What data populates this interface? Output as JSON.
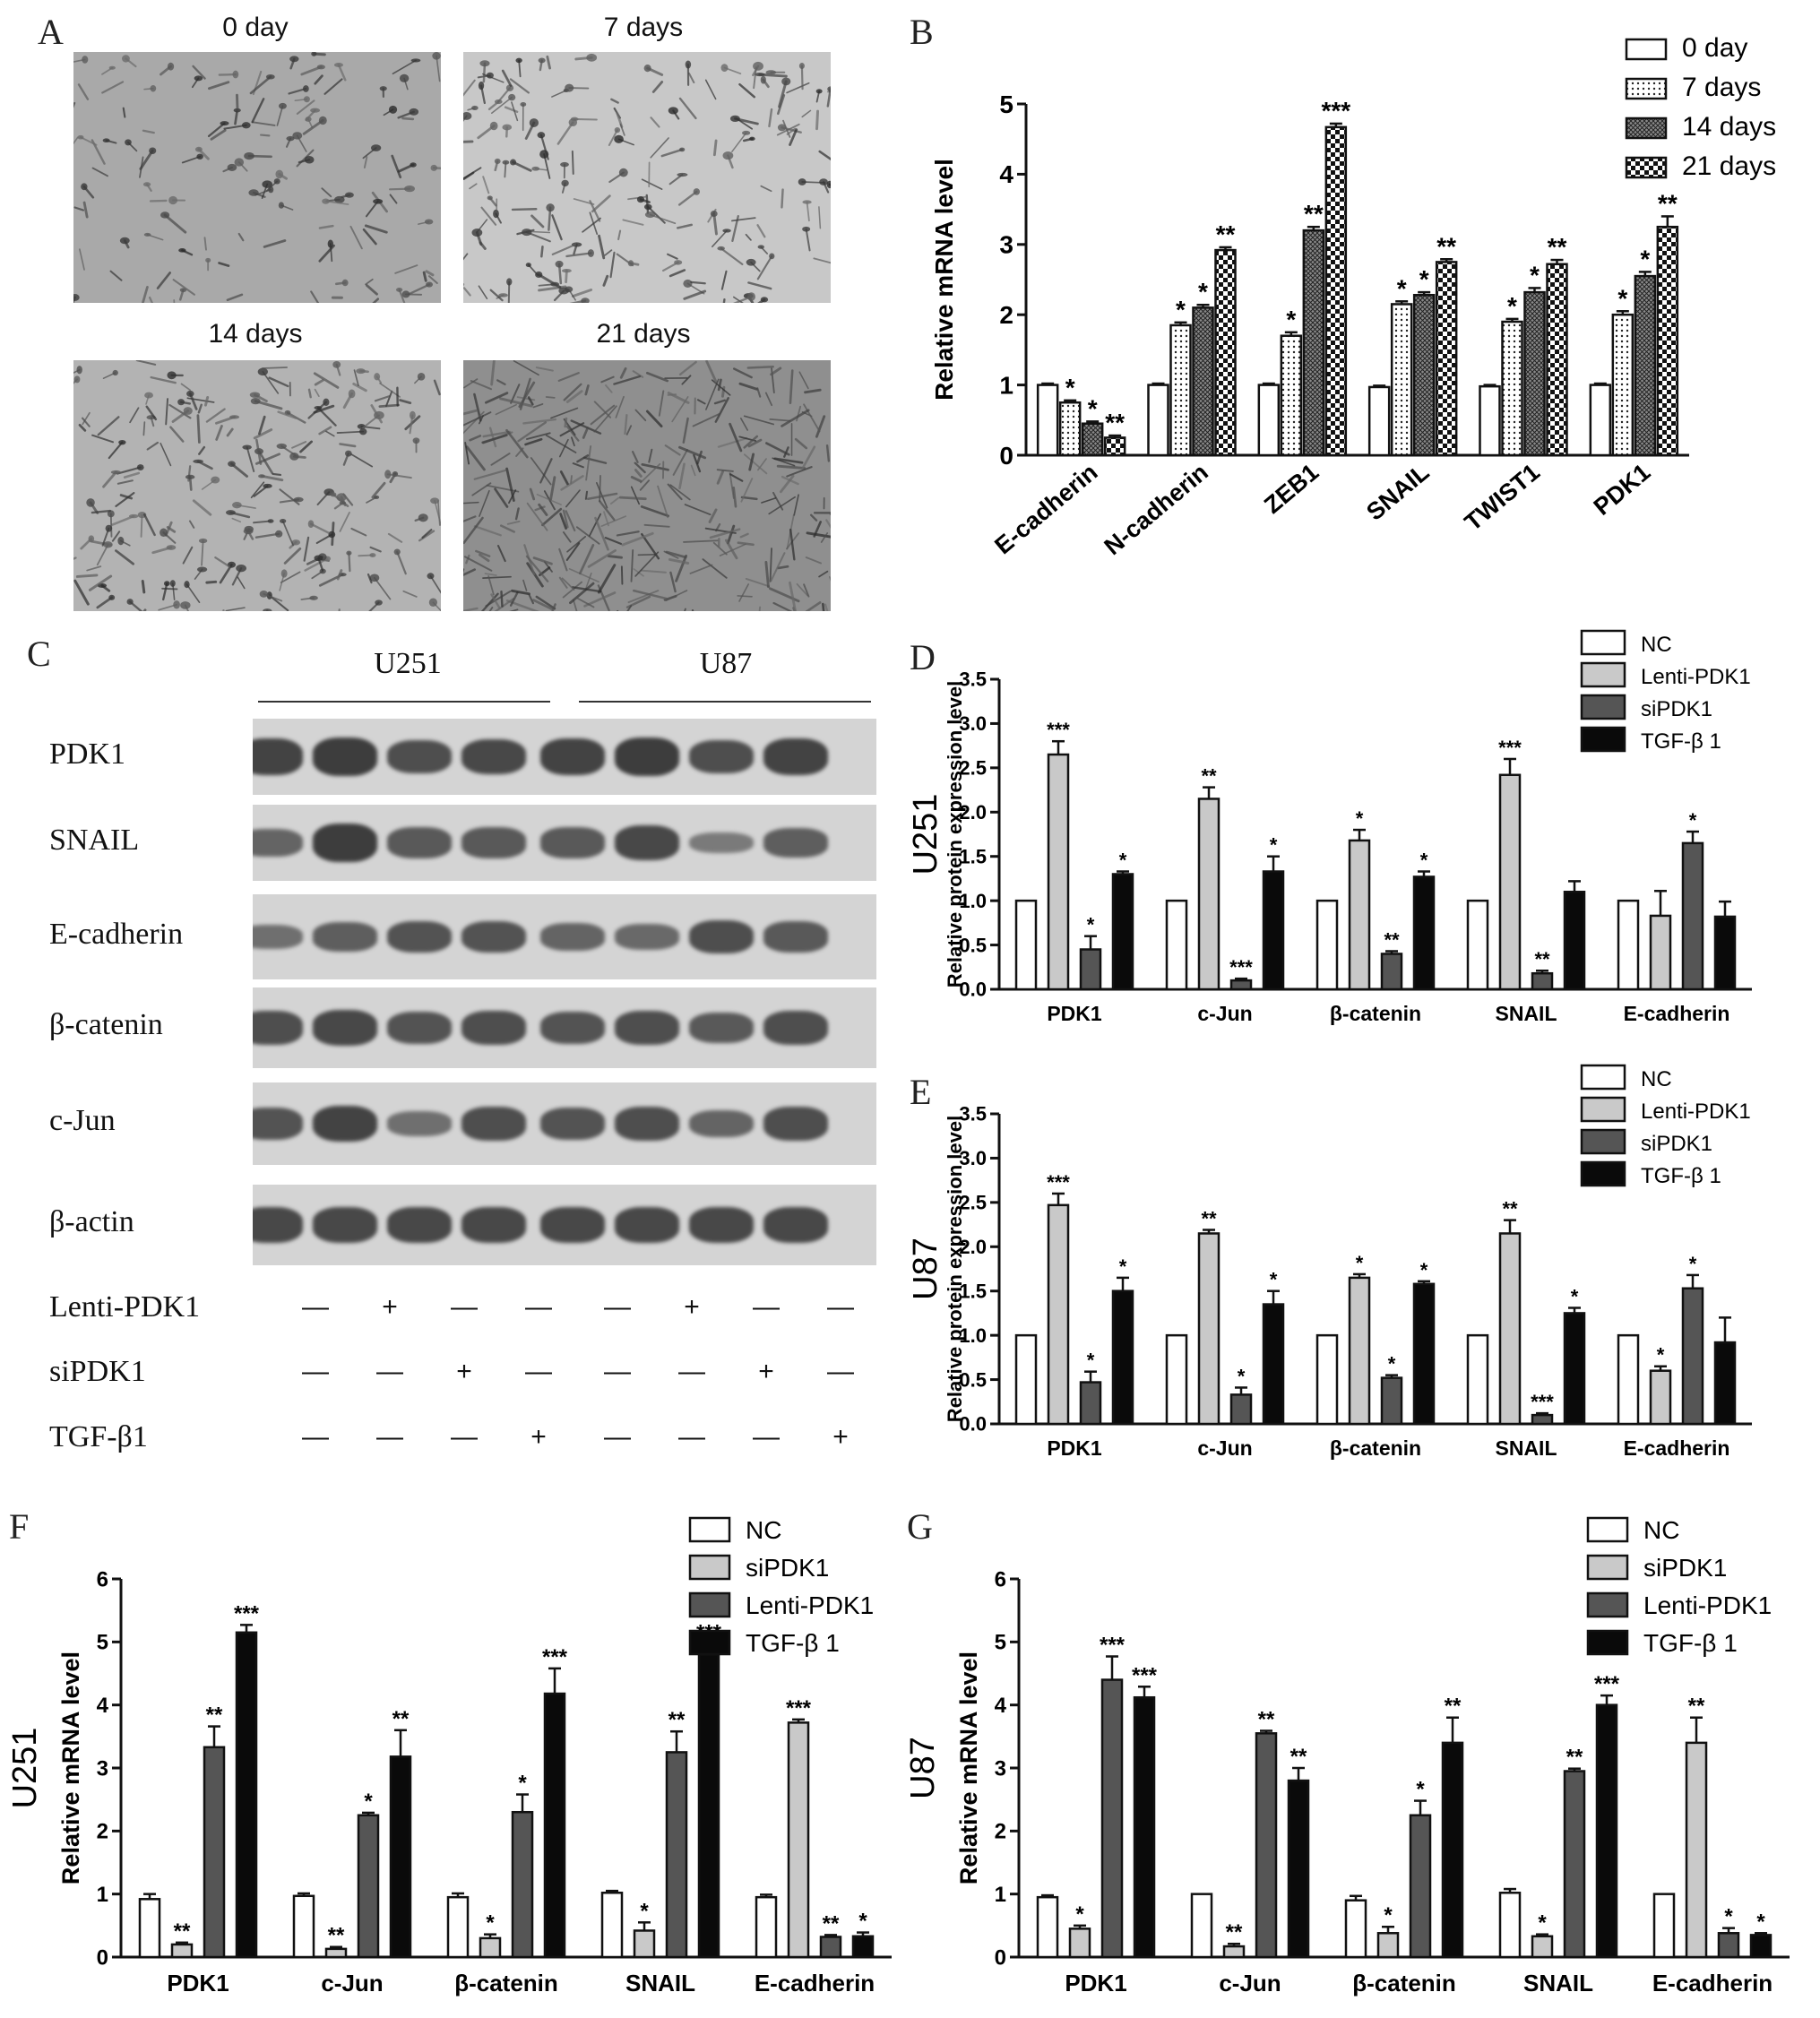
{
  "panel_labels": {
    "A": "A",
    "B": "B",
    "C": "C",
    "D": "D",
    "E": "E",
    "F": "F",
    "G": "G"
  },
  "panel_a": {
    "micrographs": [
      {
        "title": "0 day",
        "density": 0.25
      },
      {
        "title": "7 days",
        "density": 0.45
      },
      {
        "title": "14 days",
        "density": 0.55
      },
      {
        "title": "21 days",
        "density": 1.0
      }
    ]
  },
  "panel_c": {
    "cell_lines": [
      "U251",
      "U87"
    ],
    "rows": [
      {
        "label": "PDK1",
        "intensity": [
          0.85,
          0.9,
          0.75,
          0.8,
          0.85,
          0.9,
          0.75,
          0.85
        ]
      },
      {
        "label": "SNAIL",
        "intensity": [
          0.55,
          0.9,
          0.65,
          0.65,
          0.65,
          0.8,
          0.35,
          0.6
        ]
      },
      {
        "label": "E-cadherin",
        "intensity": [
          0.45,
          0.6,
          0.7,
          0.7,
          0.55,
          0.5,
          0.75,
          0.65
        ]
      },
      {
        "label": "β-catenin",
        "intensity": [
          0.75,
          0.8,
          0.7,
          0.75,
          0.7,
          0.75,
          0.65,
          0.75
        ]
      },
      {
        "label": "c-Jun",
        "intensity": [
          0.7,
          0.85,
          0.45,
          0.75,
          0.7,
          0.75,
          0.55,
          0.75
        ]
      },
      {
        "label": "β-actin",
        "intensity": [
          0.8,
          0.8,
          0.8,
          0.8,
          0.8,
          0.8,
          0.8,
          0.8
        ]
      }
    ],
    "conditions": [
      {
        "label": "Lenti-PDK1",
        "marks": [
          "—",
          "+",
          "—",
          "—",
          "—",
          "+",
          "—",
          "—"
        ]
      },
      {
        "label": "siPDK1",
        "marks": [
          "—",
          "—",
          "+",
          "—",
          "—",
          "—",
          "+",
          "—"
        ]
      },
      {
        "label": "TGF-β1",
        "marks": [
          "—",
          "—",
          "—",
          "+",
          "—",
          "—",
          "—",
          "+"
        ]
      }
    ]
  },
  "chart_data": [
    {
      "id": "B",
      "type": "bar",
      "ylabel": "Relative mRNA level",
      "side_label": "",
      "ylim": [
        0,
        5
      ],
      "yticks": [
        "0",
        "1",
        "2",
        "3",
        "4",
        "5"
      ],
      "categories": [
        "E-cadherin",
        "N-cadherin",
        "ZEB1",
        "SNAIL",
        "TWIST1",
        "PDK1"
      ],
      "legend_position": "top-right",
      "series": [
        {
          "name": "0 day",
          "pattern": "white",
          "values": [
            1.0,
            1.0,
            1.0,
            0.97,
            0.98,
            1.0
          ],
          "errors": [
            0.02,
            0.02,
            0.02,
            0.02,
            0.02,
            0.02
          ],
          "stars": [
            "",
            "",
            "",
            "",
            "",
            ""
          ]
        },
        {
          "name": "7 days",
          "pattern": "dots",
          "values": [
            0.75,
            1.85,
            1.7,
            2.15,
            1.9,
            2.0
          ],
          "errors": [
            0.03,
            0.04,
            0.05,
            0.04,
            0.04,
            0.05
          ],
          "stars": [
            "*",
            "*",
            "*",
            "*",
            "*",
            "*"
          ]
        },
        {
          "name": "14 days",
          "pattern": "grid",
          "values": [
            0.45,
            2.1,
            3.2,
            2.28,
            2.32,
            2.55
          ],
          "errors": [
            0.03,
            0.04,
            0.05,
            0.04,
            0.06,
            0.06
          ],
          "stars": [
            "*",
            "*",
            "**",
            "*",
            "*",
            "*"
          ]
        },
        {
          "name": "21 days",
          "pattern": "check",
          "values": [
            0.25,
            2.92,
            4.67,
            2.75,
            2.72,
            3.25
          ],
          "errors": [
            0.03,
            0.04,
            0.05,
            0.04,
            0.06,
            0.15
          ],
          "stars": [
            "**",
            "**",
            "***",
            "**",
            "**",
            "**"
          ]
        }
      ]
    },
    {
      "id": "D",
      "type": "bar",
      "ylabel": "Relative protein expression level",
      "side_label": "U251",
      "ylim": [
        0,
        3.5
      ],
      "yticks": [
        "0.0",
        "0.5",
        "1.0",
        "1.5",
        "2.0",
        "2.5",
        "3.0",
        "3.5"
      ],
      "categories": [
        "PDK1",
        "c-Jun",
        "β-catenin",
        "SNAIL",
        "E-cadherin"
      ],
      "legend_position": "top-right",
      "series": [
        {
          "name": "NC",
          "pattern": "white",
          "values": [
            1.0,
            1.0,
            1.0,
            1.0,
            1.0
          ],
          "errors": [
            0,
            0,
            0,
            0,
            0
          ],
          "stars": [
            "",
            "",
            "",
            "",
            ""
          ]
        },
        {
          "name": "Lenti-PDK1",
          "pattern": "light",
          "values": [
            2.65,
            2.15,
            1.68,
            2.42,
            0.83
          ],
          "errors": [
            0.15,
            0.13,
            0.12,
            0.18,
            0.28
          ],
          "stars": [
            "***",
            "**",
            "*",
            "***",
            ""
          ]
        },
        {
          "name": "siPDK1",
          "pattern": "dark",
          "values": [
            0.45,
            0.1,
            0.4,
            0.18,
            1.65
          ],
          "errors": [
            0.15,
            0.02,
            0.03,
            0.03,
            0.13
          ],
          "stars": [
            "*",
            "***",
            "**",
            "**",
            "*"
          ]
        },
        {
          "name": "TGF-β 1",
          "pattern": "black",
          "values": [
            1.3,
            1.33,
            1.27,
            1.1,
            0.82
          ],
          "errors": [
            0.03,
            0.17,
            0.06,
            0.12,
            0.17
          ],
          "stars": [
            "*",
            "*",
            "*",
            "",
            ""
          ]
        }
      ]
    },
    {
      "id": "E",
      "type": "bar",
      "ylabel": "Relative protein expression level",
      "side_label": "U87",
      "ylim": [
        0,
        3.5
      ],
      "yticks": [
        "0.0",
        "0.5",
        "1.0",
        "1.5",
        "2.0",
        "2.5",
        "3.0",
        "3.5"
      ],
      "categories": [
        "PDK1",
        "c-Jun",
        "β-catenin",
        "SNAIL",
        "E-cadherin"
      ],
      "legend_position": "top-right",
      "series": [
        {
          "name": "NC",
          "pattern": "white",
          "values": [
            1.0,
            1.0,
            1.0,
            1.0,
            1.0
          ],
          "errors": [
            0,
            0,
            0,
            0,
            0
          ],
          "stars": [
            "",
            "",
            "",
            "",
            ""
          ]
        },
        {
          "name": "Lenti-PDK1",
          "pattern": "light",
          "values": [
            2.47,
            2.15,
            1.65,
            2.15,
            0.6
          ],
          "errors": [
            0.13,
            0.04,
            0.04,
            0.15,
            0.05
          ],
          "stars": [
            "***",
            "**",
            "*",
            "**",
            "*"
          ]
        },
        {
          "name": "siPDK1",
          "pattern": "dark",
          "values": [
            0.47,
            0.33,
            0.52,
            0.1,
            1.53
          ],
          "errors": [
            0.12,
            0.08,
            0.03,
            0.02,
            0.15
          ],
          "stars": [
            "*",
            "*",
            "*",
            "***",
            "*"
          ]
        },
        {
          "name": "TGF-β 1",
          "pattern": "black",
          "values": [
            1.5,
            1.35,
            1.58,
            1.25,
            0.92
          ],
          "errors": [
            0.15,
            0.15,
            0.03,
            0.06,
            0.28
          ],
          "stars": [
            "*",
            "*",
            "*",
            "*",
            ""
          ]
        }
      ]
    },
    {
      "id": "F",
      "type": "bar",
      "ylabel": "Relative mRNA level",
      "side_label": "U251",
      "ylim": [
        0,
        6
      ],
      "yticks": [
        "0",
        "1",
        "2",
        "3",
        "4",
        "5",
        "6"
      ],
      "categories": [
        "PDK1",
        "c-Jun",
        "β-catenin",
        "SNAIL",
        "E-cadherin"
      ],
      "legend_position": "top-right",
      "series": [
        {
          "name": "NC",
          "pattern": "white",
          "values": [
            0.92,
            0.97,
            0.95,
            1.02,
            0.95
          ],
          "errors": [
            0.08,
            0.04,
            0.06,
            0.03,
            0.04
          ],
          "stars": [
            "",
            "",
            "",
            "",
            ""
          ]
        },
        {
          "name": "siPDK1",
          "pattern": "light",
          "values": [
            0.2,
            0.13,
            0.3,
            0.42,
            3.72
          ],
          "errors": [
            0.03,
            0.03,
            0.06,
            0.13,
            0.05
          ],
          "stars": [
            "**",
            "**",
            "*",
            "*",
            "***"
          ]
        },
        {
          "name": "Lenti-PDK1",
          "pattern": "dark",
          "values": [
            3.33,
            2.25,
            2.3,
            3.25,
            0.32
          ],
          "errors": [
            0.33,
            0.04,
            0.28,
            0.33,
            0.03
          ],
          "stars": [
            "**",
            "*",
            "*",
            "**",
            "**"
          ]
        },
        {
          "name": "TGF-β 1",
          "pattern": "black",
          "values": [
            5.15,
            3.18,
            4.18,
            4.8,
            0.33
          ],
          "errors": [
            0.12,
            0.42,
            0.4,
            0.17,
            0.06
          ],
          "stars": [
            "***",
            "**",
            "***",
            "***",
            "*"
          ]
        }
      ]
    },
    {
      "id": "G",
      "type": "bar",
      "ylabel": "Relative mRNA level",
      "side_label": "U87",
      "ylim": [
        0,
        6
      ],
      "yticks": [
        "0",
        "1",
        "2",
        "3",
        "4",
        "5",
        "6"
      ],
      "categories": [
        "PDK1",
        "c-Jun",
        "β-catenin",
        "SNAIL",
        "E-cadherin"
      ],
      "legend_position": "top-right",
      "series": [
        {
          "name": "NC",
          "pattern": "white",
          "values": [
            0.95,
            1.0,
            0.9,
            1.02,
            1.0
          ],
          "errors": [
            0.03,
            0.0,
            0.07,
            0.06,
            0.0
          ],
          "stars": [
            "",
            "",
            "",
            "",
            ""
          ]
        },
        {
          "name": "siPDK1",
          "pattern": "light",
          "values": [
            0.45,
            0.17,
            0.38,
            0.33,
            3.4
          ],
          "errors": [
            0.05,
            0.04,
            0.1,
            0.03,
            0.4
          ],
          "stars": [
            "*",
            "**",
            "*",
            "*",
            "**"
          ]
        },
        {
          "name": "Lenti-PDK1",
          "pattern": "dark",
          "values": [
            4.4,
            3.55,
            2.25,
            2.95,
            0.38
          ],
          "errors": [
            0.37,
            0.04,
            0.23,
            0.04,
            0.08
          ],
          "stars": [
            "***",
            "**",
            "*",
            "**",
            "*"
          ]
        },
        {
          "name": "TGF-β 1",
          "pattern": "black",
          "values": [
            4.12,
            2.8,
            3.4,
            4.0,
            0.35
          ],
          "errors": [
            0.17,
            0.2,
            0.4,
            0.15,
            0.03
          ],
          "stars": [
            "***",
            "**",
            "**",
            "***",
            "*"
          ]
        }
      ]
    }
  ]
}
